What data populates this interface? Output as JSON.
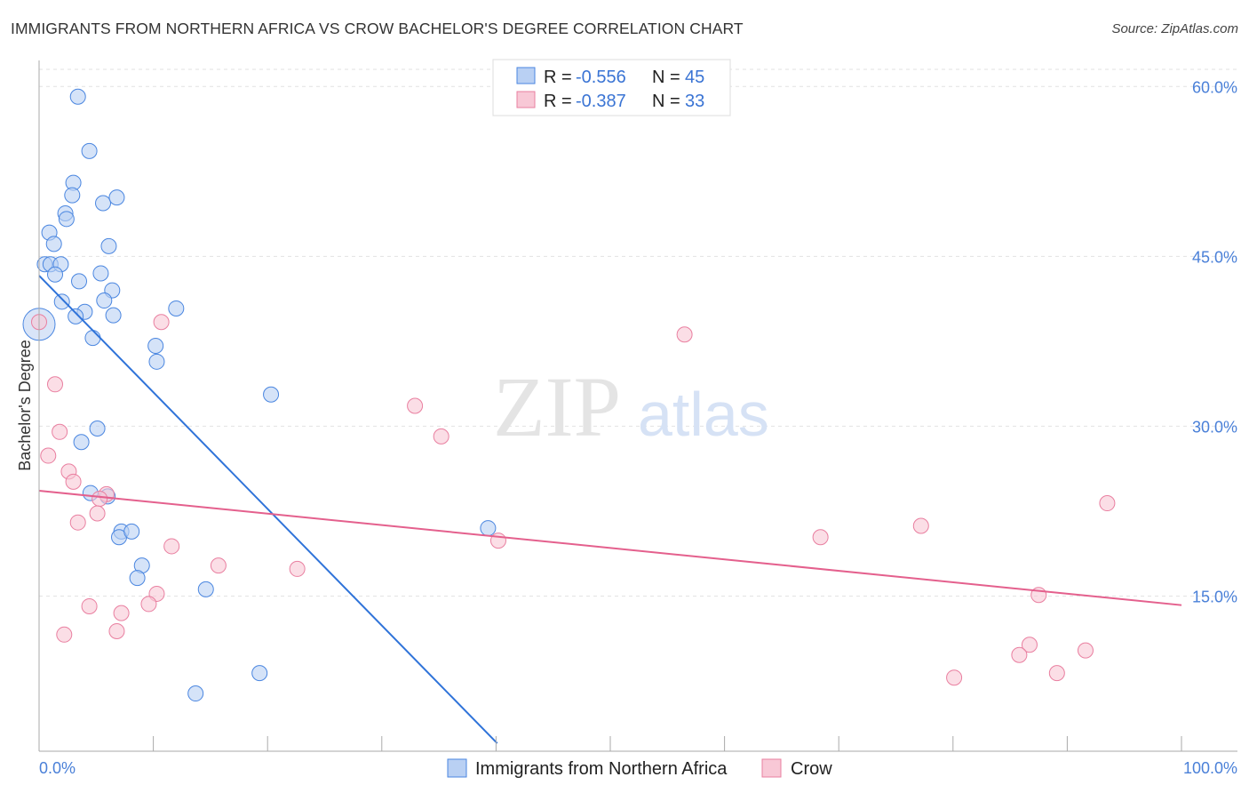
{
  "title": "IMMIGRANTS FROM NORTHERN AFRICA VS CROW BACHELOR'S DEGREE CORRELATION CHART",
  "source": "Source: ZipAtlas.com",
  "watermark": "ZIPatlas",
  "chart_data": {
    "type": "scatter",
    "title": "IMMIGRANTS FROM NORTHERN AFRICA VS CROW BACHELOR'S DEGREE CORRELATION CHART",
    "xlabel": "",
    "ylabel": "Bachelor's Degree",
    "xlim": [
      0,
      100
    ],
    "ylim": [
      1.3,
      62.3
    ],
    "x_tick_labels": [
      "0.0%",
      "100.0%"
    ],
    "y_ticks": [
      15,
      30,
      45,
      60
    ],
    "y_tick_labels": [
      "15.0%",
      "30.0%",
      "45.0%",
      "60.0%"
    ],
    "grid": true,
    "legend_placement": "top-center",
    "series": [
      {
        "name": "Immigrants from Northern Africa",
        "color": "#4a86e0",
        "fill": "#b9d0f3",
        "r_label": "R =",
        "r_value": "-0.556",
        "n_label": "N =",
        "n_value": "45",
        "trend": [
          [
            0,
            43.3
          ],
          [
            40.1,
            2.0
          ]
        ],
        "points": [
          [
            3.4,
            59.1
          ],
          [
            4.4,
            54.3
          ],
          [
            3.0,
            51.5
          ],
          [
            2.9,
            50.4
          ],
          [
            5.6,
            49.7
          ],
          [
            6.8,
            50.2
          ],
          [
            2.3,
            48.8
          ],
          [
            2.4,
            48.3
          ],
          [
            0.9,
            47.1
          ],
          [
            1.3,
            46.1
          ],
          [
            6.1,
            45.9
          ],
          [
            0.5,
            44.3
          ],
          [
            1.0,
            44.3
          ],
          [
            1.9,
            44.3
          ],
          [
            1.4,
            43.4
          ],
          [
            3.5,
            42.8
          ],
          [
            5.4,
            43.5
          ],
          [
            6.4,
            42.0
          ],
          [
            2.0,
            41.0
          ],
          [
            5.7,
            41.1
          ],
          [
            4.0,
            40.1
          ],
          [
            3.2,
            39.7
          ],
          [
            6.5,
            39.8
          ],
          [
            12.0,
            40.4
          ],
          [
            4.7,
            37.8
          ],
          [
            0.0,
            39.0,
            "big"
          ],
          [
            10.2,
            37.1
          ],
          [
            10.3,
            35.7
          ],
          [
            20.3,
            32.8
          ],
          [
            5.1,
            29.8
          ],
          [
            3.7,
            28.6
          ],
          [
            4.5,
            24.1
          ],
          [
            6.0,
            23.8
          ],
          [
            7.2,
            20.7
          ],
          [
            7.0,
            20.2
          ],
          [
            8.1,
            20.7
          ],
          [
            9.0,
            17.7
          ],
          [
            8.6,
            16.6
          ],
          [
            14.6,
            15.6
          ],
          [
            39.3,
            21.0
          ],
          [
            19.3,
            8.2
          ],
          [
            13.7,
            6.4
          ]
        ]
      },
      {
        "name": "Crow",
        "color": "#e97fa0",
        "fill": "#f8c8d6",
        "r_label": "R =",
        "r_value": "-0.387",
        "n_label": "N =",
        "n_value": "33",
        "trend": [
          [
            0,
            24.3
          ],
          [
            100,
            14.2
          ]
        ],
        "points": [
          [
            0,
            39.2
          ],
          [
            10.7,
            39.2
          ],
          [
            1.4,
            33.7
          ],
          [
            1.8,
            29.5
          ],
          [
            0.8,
            27.4
          ],
          [
            2.6,
            26.0
          ],
          [
            3.0,
            25.1
          ],
          [
            5.9,
            24.0
          ],
          [
            5.3,
            23.6
          ],
          [
            5.1,
            22.3
          ],
          [
            3.4,
            21.5
          ],
          [
            11.6,
            19.4
          ],
          [
            15.7,
            17.7
          ],
          [
            22.6,
            17.4
          ],
          [
            10.3,
            15.2
          ],
          [
            9.6,
            14.3
          ],
          [
            4.4,
            14.1
          ],
          [
            7.2,
            13.5
          ],
          [
            6.8,
            11.9
          ],
          [
            2.2,
            11.6
          ],
          [
            56.5,
            38.1
          ],
          [
            32.9,
            31.8
          ],
          [
            35.2,
            29.1
          ],
          [
            40.2,
            19.9
          ],
          [
            68.4,
            20.2
          ],
          [
            77.2,
            21.2
          ],
          [
            93.5,
            23.2
          ],
          [
            87.5,
            15.1
          ],
          [
            86.7,
            10.7
          ],
          [
            85.8,
            9.8
          ],
          [
            91.6,
            10.2
          ],
          [
            89.1,
            8.2
          ],
          [
            80.1,
            7.8
          ]
        ]
      }
    ]
  }
}
